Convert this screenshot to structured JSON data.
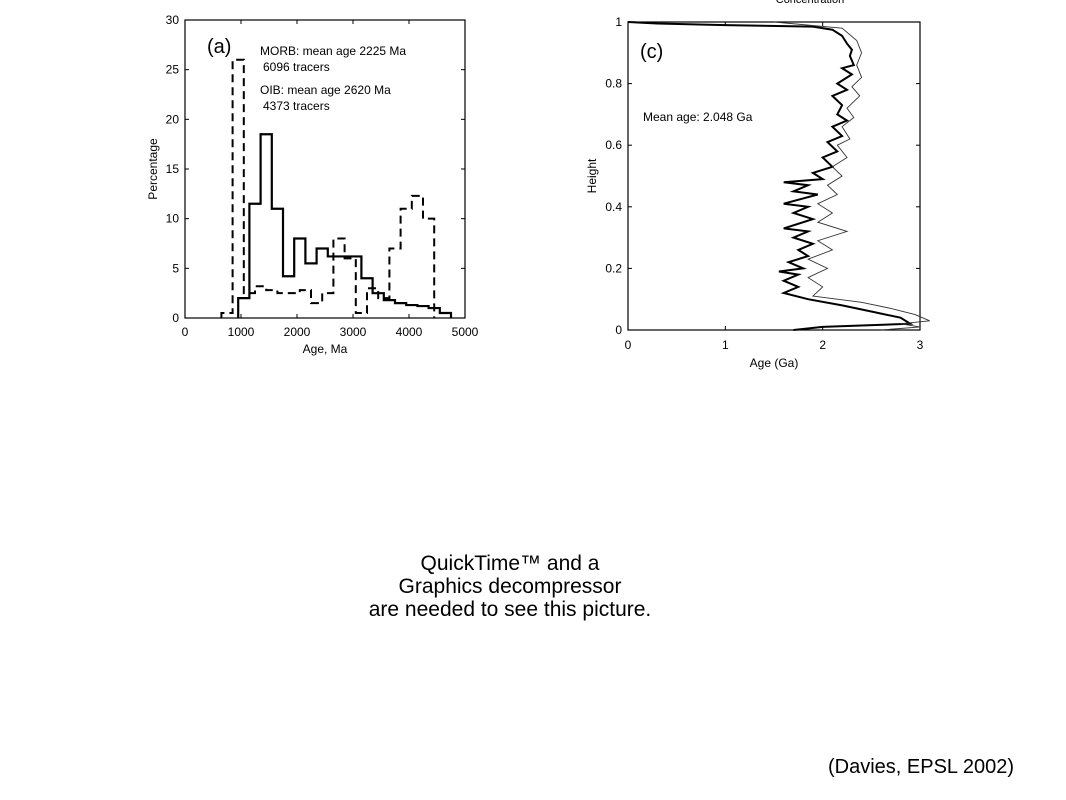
{
  "chart_data": [
    {
      "type": "histogram",
      "panel_label": "(a)",
      "xlabel": "Age, Ma",
      "ylabel": "Percentage",
      "xlim": [
        0,
        5000
      ],
      "ylim": [
        0,
        30
      ],
      "x_ticks": [
        "0",
        "1000",
        "2000",
        "3000",
        "4000",
        "5000"
      ],
      "y_ticks": [
        "0",
        "5",
        "10",
        "15",
        "20",
        "25",
        "30"
      ],
      "legend_lines": [
        "MORB: mean age 2225 Ma",
        "6096 tracers",
        "OIB: mean age 2620 Ma",
        "4373 tracers"
      ],
      "series": [
        {
          "name": "MORB",
          "style": "solid",
          "bin_edges": [
            950,
            1150,
            1350,
            1550,
            1750,
            1950,
            2150,
            2350,
            2550,
            2750,
            2950,
            3150,
            3350,
            3550,
            3750,
            3950,
            4150,
            4350,
            4550,
            4750
          ],
          "values": [
            2,
            11.5,
            18.5,
            11,
            4.2,
            8,
            5.5,
            7,
            6.2,
            6.2,
            6.2,
            4,
            2.5,
            1.8,
            1.5,
            1.3,
            1.2,
            1,
            0.5
          ]
        },
        {
          "name": "OIB",
          "style": "dashed",
          "bin_edges": [
            650,
            850,
            1050,
            1250,
            1450,
            1650,
            1850,
            2050,
            2250,
            2450,
            2650,
            2850,
            3050,
            3250,
            3450,
            3650,
            3850,
            4050,
            4250,
            4450
          ],
          "values": [
            0.5,
            26,
            2.5,
            3.2,
            2.8,
            2.5,
            2.5,
            2.8,
            1.5,
            2.5,
            8,
            6,
            0.5,
            3,
            2,
            7,
            11,
            12.3,
            10
          ]
        }
      ]
    },
    {
      "type": "line",
      "panel_label": "(c)",
      "xlabel": "Age (Ga)",
      "ylabel": "Height",
      "xlim": [
        0,
        3
      ],
      "ylim": [
        0,
        1
      ],
      "x_ticks": [
        "0",
        "1",
        "2",
        "3"
      ],
      "y_ticks": [
        "0",
        "0.2",
        "0.4",
        "0.6",
        "0.8",
        "1"
      ],
      "annotation": "Mean age: 2.048 Ga",
      "top_partial_label": "Concentration",
      "series": [
        {
          "style": "bold",
          "points": [
            [
              0.0,
              1.0
            ],
            [
              0.3,
              0.995
            ],
            [
              1.0,
              0.99
            ],
            [
              1.9,
              0.985
            ],
            [
              2.1,
              0.975
            ],
            [
              2.2,
              0.955
            ],
            [
              2.25,
              0.93
            ],
            [
              2.3,
              0.91
            ],
            [
              2.28,
              0.89
            ],
            [
              2.32,
              0.86
            ],
            [
              2.2,
              0.85
            ],
            [
              2.3,
              0.83
            ],
            [
              2.15,
              0.8
            ],
            [
              2.25,
              0.78
            ],
            [
              2.1,
              0.76
            ],
            [
              2.2,
              0.73
            ],
            [
              2.15,
              0.7
            ],
            [
              2.25,
              0.68
            ],
            [
              2.1,
              0.66
            ],
            [
              2.2,
              0.63
            ],
            [
              2.05,
              0.61
            ],
            [
              2.15,
              0.58
            ],
            [
              2.0,
              0.56
            ],
            [
              2.1,
              0.53
            ],
            [
              1.9,
              0.51
            ],
            [
              2.0,
              0.49
            ],
            [
              1.6,
              0.48
            ],
            [
              1.85,
              0.47
            ],
            [
              1.7,
              0.45
            ],
            [
              1.95,
              0.44
            ],
            [
              1.6,
              0.41
            ],
            [
              1.85,
              0.4
            ],
            [
              1.7,
              0.38
            ],
            [
              1.9,
              0.36
            ],
            [
              1.6,
              0.33
            ],
            [
              1.85,
              0.32
            ],
            [
              1.7,
              0.3
            ],
            [
              1.9,
              0.28
            ],
            [
              1.75,
              0.26
            ],
            [
              1.85,
              0.24
            ],
            [
              1.65,
              0.22
            ],
            [
              1.8,
              0.2
            ],
            [
              1.55,
              0.19
            ],
            [
              1.75,
              0.18
            ],
            [
              1.6,
              0.16
            ],
            [
              1.75,
              0.14
            ],
            [
              1.6,
              0.12
            ],
            [
              1.85,
              0.1
            ],
            [
              2.2,
              0.08
            ],
            [
              2.5,
              0.06
            ],
            [
              2.8,
              0.04
            ],
            [
              2.9,
              0.02
            ],
            [
              2.0,
              0.01
            ],
            [
              1.7,
              0.0
            ]
          ]
        },
        {
          "style": "thin",
          "points": [
            [
              1.5,
              1.0
            ],
            [
              2.2,
              0.98
            ],
            [
              2.35,
              0.94
            ],
            [
              2.4,
              0.9
            ],
            [
              2.35,
              0.86
            ],
            [
              2.4,
              0.82
            ],
            [
              2.3,
              0.79
            ],
            [
              2.38,
              0.76
            ],
            [
              2.25,
              0.72
            ],
            [
              2.32,
              0.69
            ],
            [
              2.2,
              0.66
            ],
            [
              2.28,
              0.62
            ],
            [
              2.15,
              0.6
            ],
            [
              2.25,
              0.56
            ],
            [
              2.1,
              0.53
            ],
            [
              2.2,
              0.5
            ],
            [
              2.05,
              0.47
            ],
            [
              2.15,
              0.44
            ],
            [
              1.95,
              0.41
            ],
            [
              2.1,
              0.38
            ],
            [
              1.95,
              0.35
            ],
            [
              2.25,
              0.32
            ],
            [
              1.95,
              0.29
            ],
            [
              2.1,
              0.26
            ],
            [
              1.85,
              0.23
            ],
            [
              2.05,
              0.2
            ],
            [
              1.85,
              0.17
            ],
            [
              2.0,
              0.14
            ],
            [
              1.9,
              0.11
            ],
            [
              2.4,
              0.09
            ],
            [
              2.7,
              0.07
            ],
            [
              2.95,
              0.05
            ],
            [
              3.1,
              0.03
            ],
            [
              2.8,
              0.02
            ],
            [
              3.0,
              0.01
            ],
            [
              2.6,
              0.0
            ]
          ]
        }
      ]
    }
  ],
  "notice": {
    "line1": "QuickTime™ and a",
    "line2": "Graphics decompressor",
    "line3": "are needed to see this picture."
  },
  "citation": "(Davies,  EPSL 2002)"
}
